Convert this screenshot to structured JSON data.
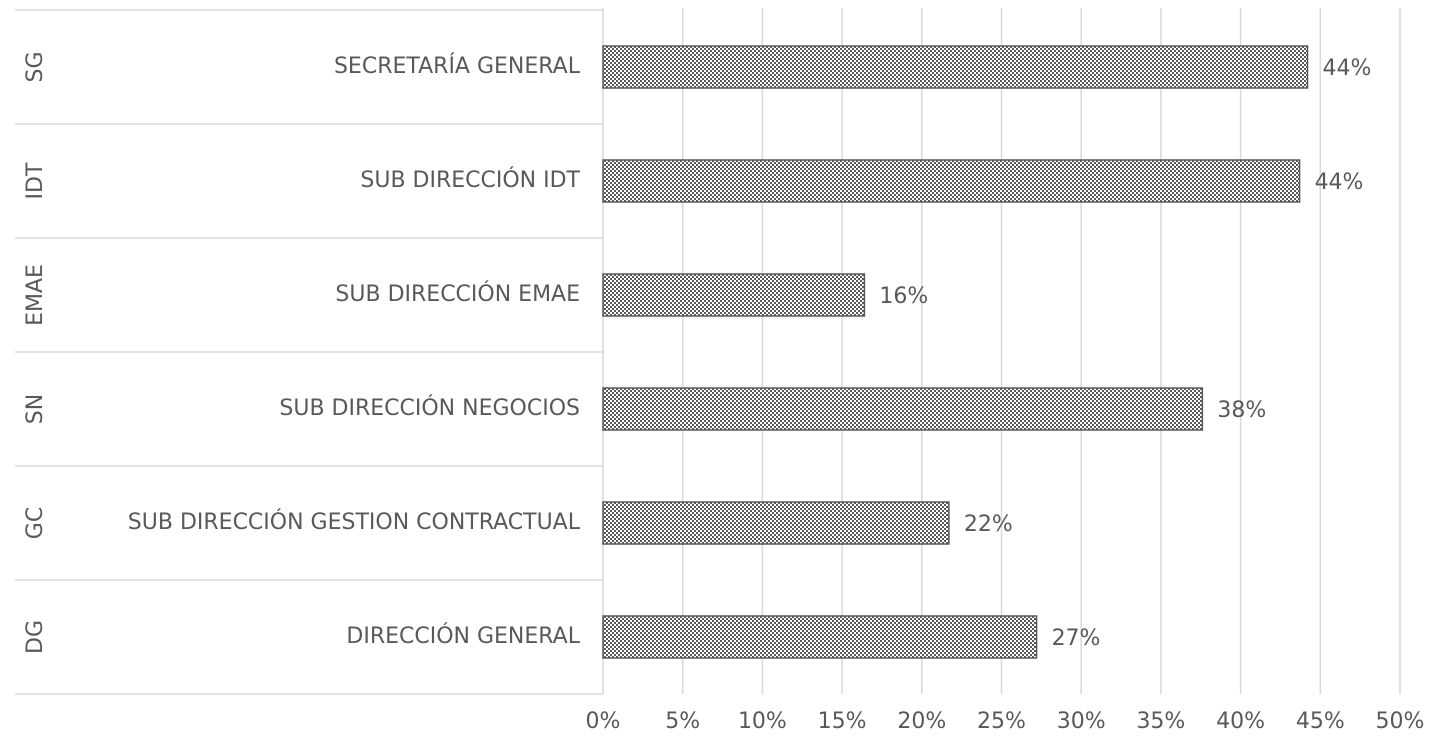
{
  "chart_data": {
    "type": "hbar",
    "groups": [
      "SG",
      "IDT",
      "EMAE",
      "SN",
      "GC",
      "DG"
    ],
    "categories": [
      "SECRETARÍA GENERAL",
      "SUB DIRECCIÓN IDT",
      "SUB DIRECCIÓN EMAE",
      "SUB DIRECCIÓN NEGOCIOS",
      "SUB DIRECCIÓN GESTION CONTRACTUAL",
      "DIRECCIÓN GENERAL"
    ],
    "values": [
      44.2,
      43.7,
      16.4,
      37.6,
      21.7,
      27.2
    ],
    "value_labels": [
      "44%",
      "44%",
      "16%",
      "38%",
      "22%",
      "27%"
    ],
    "color": "#595959",
    "xlim": [
      0,
      50
    ],
    "xticks": [
      {
        "value": 0,
        "label": "0%"
      },
      {
        "value": 5,
        "label": "5%"
      },
      {
        "value": 10,
        "label": "10%"
      },
      {
        "value": 15,
        "label": "15%"
      },
      {
        "value": 20,
        "label": "20%"
      },
      {
        "value": 25,
        "label": "25%"
      },
      {
        "value": 30,
        "label": "30%"
      },
      {
        "value": 35,
        "label": "35%"
      },
      {
        "value": 40,
        "label": "40%"
      },
      {
        "value": 45,
        "label": "45%"
      },
      {
        "value": 50,
        "label": "50%"
      }
    ],
    "grid": true
  }
}
